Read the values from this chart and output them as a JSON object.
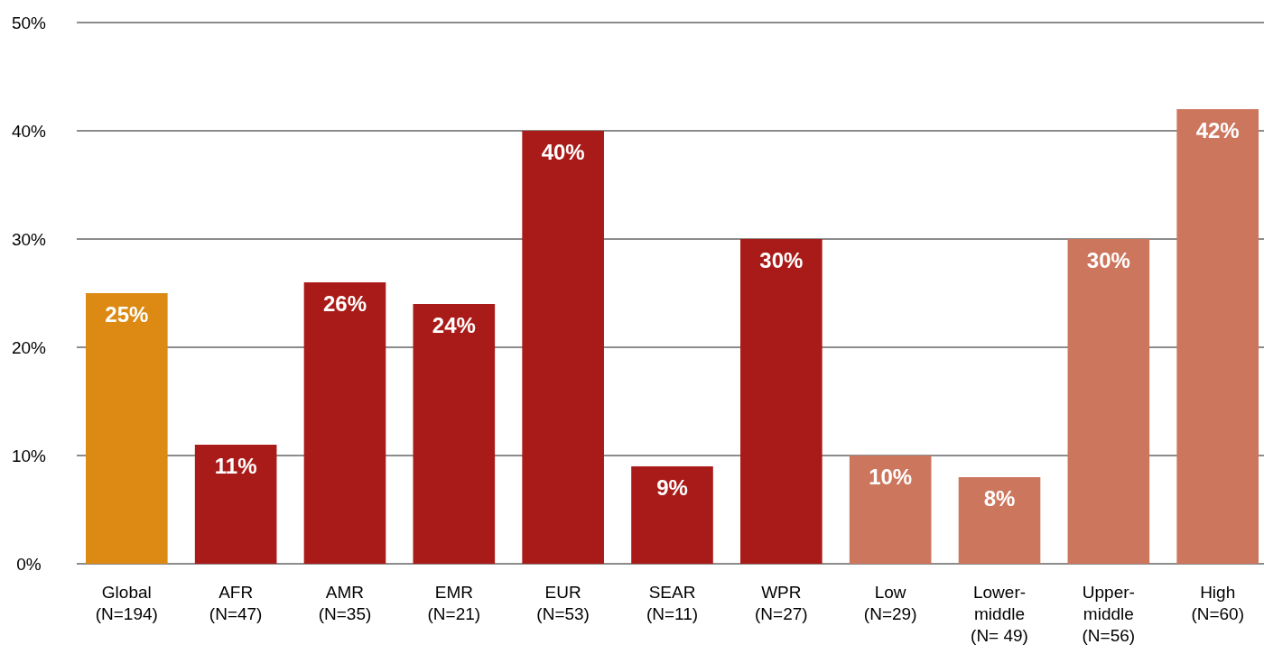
{
  "chart_data": {
    "type": "bar",
    "categories": [
      "Global\n(N=194)",
      "AFR\n(N=47)",
      "AMR\n(N=35)",
      "EMR\n(N=21)",
      "EUR\n(N=53)",
      "SEAR\n(N=11)",
      "WPR\n(N=27)",
      "Low\n(N=29)",
      "Lower-\nmiddle\n(N= 49)",
      "Upper-\nmiddle\n(N=56)",
      "High\n(N=60)"
    ],
    "values": [
      25,
      11,
      26,
      24,
      40,
      9,
      30,
      10,
      8,
      30,
      42
    ],
    "colors": [
      "#dc8a14",
      "#a91b18",
      "#a91b18",
      "#a91b18",
      "#a91b18",
      "#a91b18",
      "#a91b18",
      "#cc765e",
      "#cc765e",
      "#cc765e",
      "#cc765e"
    ],
    "ylim": [
      0,
      50
    ],
    "yticks": [
      {
        "value": 0,
        "label": "0%"
      },
      {
        "value": 10,
        "label": "10%"
      },
      {
        "value": 20,
        "label": "20%"
      },
      {
        "value": 30,
        "label": "30%"
      },
      {
        "value": 40,
        "label": "40%"
      },
      {
        "value": 50,
        "label": "50%"
      }
    ],
    "value_labels": [
      "25%",
      "11%",
      "26%",
      "24%",
      "40%",
      "9%",
      "30%",
      "10%",
      "8%",
      "30%",
      "42%"
    ],
    "grid": "y"
  }
}
